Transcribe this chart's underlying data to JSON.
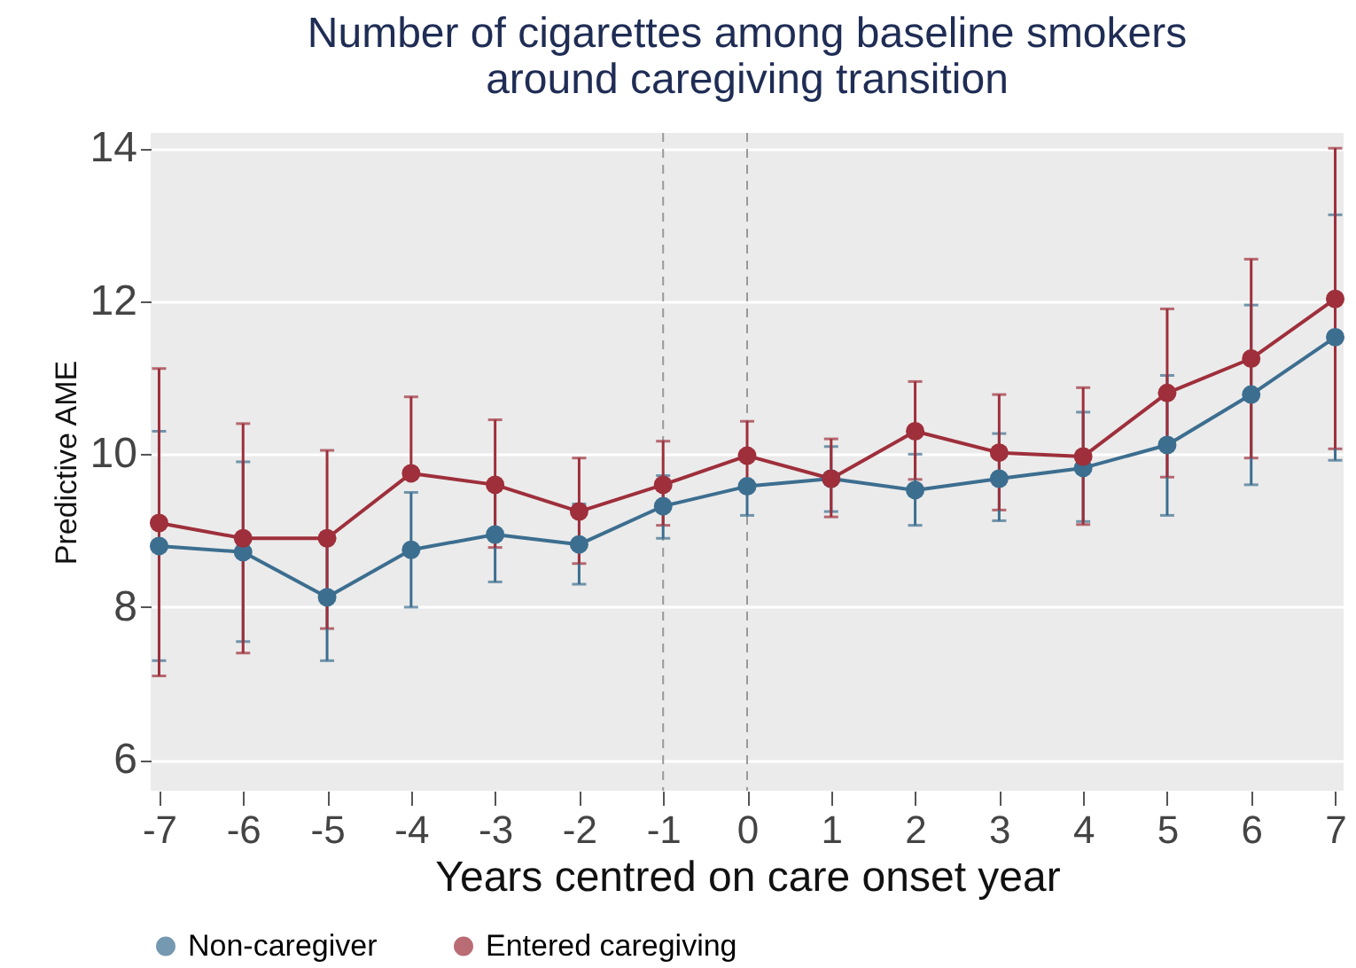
{
  "chart_data": {
    "type": "line",
    "title": "Number of cigarettes among baseline smokers\naround caregiving transition",
    "xlabel": "Years centred on care onset year",
    "ylabel": "Predictive AME",
    "x": [
      -7,
      -6,
      -5,
      -4,
      -3,
      -2,
      -1,
      0,
      1,
      2,
      3,
      4,
      5,
      6,
      7
    ],
    "series": [
      {
        "name": "Non-caregiver",
        "color": "#3c6e8f",
        "values": [
          8.8,
          8.72,
          8.13,
          8.75,
          8.95,
          8.82,
          9.32,
          9.58,
          9.68,
          9.53,
          9.68,
          9.82,
          10.12,
          10.78,
          11.53
        ],
        "errors": [
          [
            7.3,
            10.3
          ],
          [
            7.55,
            9.9
          ],
          [
            7.3,
            8.97
          ],
          [
            8.0,
            9.5
          ],
          [
            8.33,
            9.55
          ],
          [
            8.3,
            9.35
          ],
          [
            8.9,
            9.72
          ],
          [
            9.2,
            9.58
          ],
          [
            9.25,
            10.1
          ],
          [
            9.07,
            10.0
          ],
          [
            9.13,
            10.27
          ],
          [
            9.12,
            10.55
          ],
          [
            9.2,
            11.03
          ],
          [
            9.6,
            11.95
          ],
          [
            9.92,
            13.13
          ]
        ]
      },
      {
        "name": "Entered caregiving",
        "color": "#9e2f3b",
        "values": [
          9.1,
          8.9,
          8.9,
          9.75,
          9.6,
          9.25,
          9.6,
          9.98,
          9.68,
          10.3,
          10.02,
          9.97,
          10.8,
          11.25,
          12.03
        ],
        "errors": [
          [
            7.1,
            11.12
          ],
          [
            7.4,
            10.4
          ],
          [
            7.72,
            10.05
          ],
          [
            9.75,
            10.75
          ],
          [
            8.78,
            10.45
          ],
          [
            8.57,
            9.95
          ],
          [
            9.07,
            10.17
          ],
          [
            9.55,
            10.43
          ],
          [
            9.18,
            10.2
          ],
          [
            9.67,
            10.95
          ],
          [
            9.27,
            10.78
          ],
          [
            9.08,
            10.87
          ],
          [
            9.7,
            11.9
          ],
          [
            9.95,
            12.55
          ],
          [
            10.07,
            14.0
          ]
        ]
      }
    ],
    "xlim": [
      -7.1,
      7.1
    ],
    "ylim": [
      5.6,
      14.2
    ],
    "xticks": [
      -7,
      -6,
      -5,
      -4,
      -3,
      -2,
      -1,
      0,
      1,
      2,
      3,
      4,
      5,
      6,
      7
    ],
    "yticks": [
      6,
      8,
      10,
      12,
      14
    ],
    "ref_lines": [
      {
        "axis": "x",
        "value": -1,
        "line_style": "dashed",
        "color": "#999999"
      },
      {
        "axis": "x",
        "value": 0,
        "line_style": "dashed",
        "color": "#999999"
      }
    ],
    "grid": "y",
    "legend": "bottom",
    "marker": "circle",
    "line_style": "solid"
  }
}
